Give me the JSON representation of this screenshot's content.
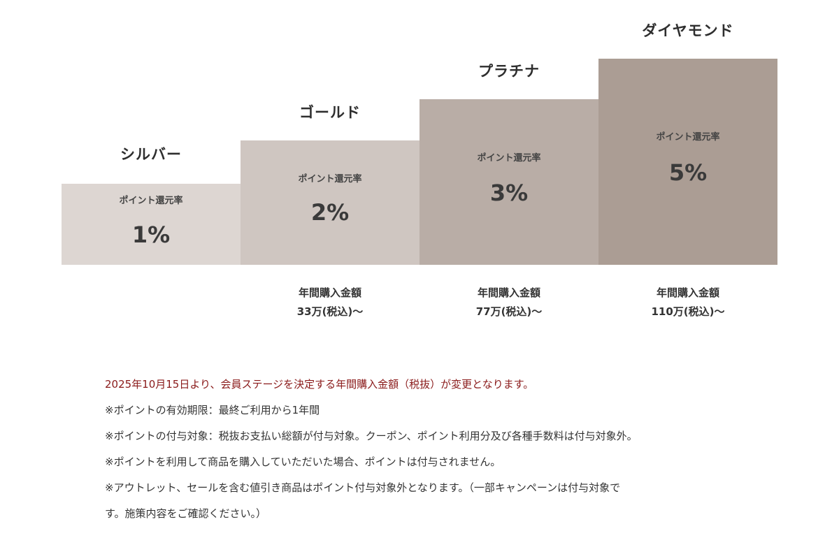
{
  "tiers": [
    {
      "name": "シルバー",
      "rate_label": "ポイント還元率",
      "rate": "1%",
      "color": "#ddd6d2",
      "requirement_label": "",
      "requirement_value": ""
    },
    {
      "name": "ゴールド",
      "rate_label": "ポイント還元率",
      "rate": "2%",
      "color": "#cfc6c1",
      "requirement_label": "年間購入金額",
      "requirement_value": "33万(税込)～"
    },
    {
      "name": "プラチナ",
      "rate_label": "ポイント還元率",
      "rate": "3%",
      "color": "#b9ada6",
      "requirement_label": "年間購入金額",
      "requirement_value": "77万(税込)～"
    },
    {
      "name": "ダイヤモンド",
      "rate_label": "ポイント還元率",
      "rate": "5%",
      "color": "#ab9d94",
      "requirement_label": "年間購入金額",
      "requirement_value": "110万(税込)～"
    }
  ],
  "notes": [
    "2025年10月15日より、会員ステージを決定する年間購入金額（税抜）が変更となります。",
    "※ポイントの有効期限：最終ご利用から1年間",
    "※ポイントの付与対象：税抜お支払い総額が付与対象。クーポン、ポイント利用分及び各種手数料は付与対象外。",
    "※ポイントを利用して商品を購入していただいた場合、ポイントは付与されません。",
    "※アウトレット、セールを含む値引き商品はポイント付与対象外となります。（一部キャンペーンは付与対象で",
    "す。施策内容をご確認ください。）"
  ],
  "colors": {
    "notice_text": "#8a1a1a",
    "body_text": "#333333"
  }
}
